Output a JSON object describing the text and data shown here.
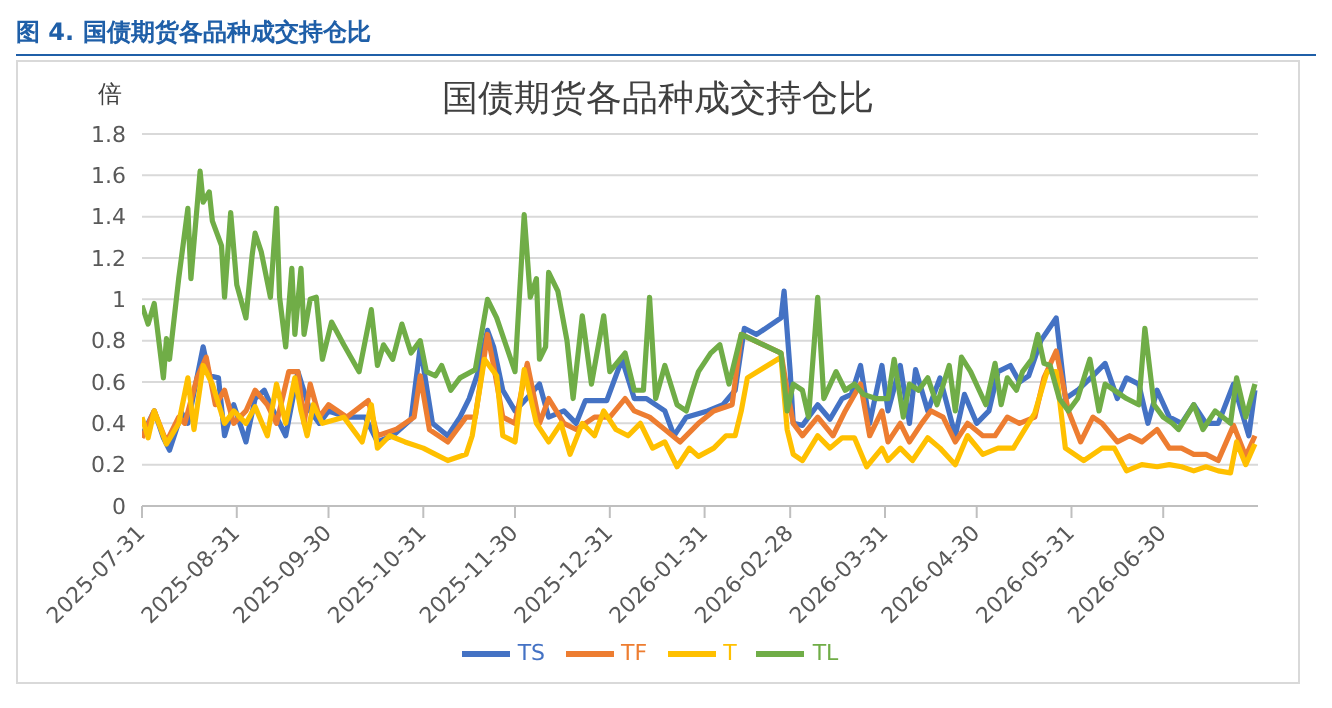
{
  "chart_data": {
    "type": "line",
    "title": "国债期货各品种成交持仓比",
    "ylabel": "倍",
    "annotations": [
      "图 4. 国债期货各品种成交持仓比"
    ],
    "xlim": [
      "2025-07-31",
      "2026-07-31"
    ],
    "xticks": [
      "2025-07-31",
      "2025-08-31",
      "2025-09-30",
      "2025-10-31",
      "2025-11-30",
      "2025-12-31",
      "2026-01-31",
      "2026-02-28",
      "2026-03-31",
      "2026-04-30",
      "2026-05-31",
      "2026-06-30"
    ],
    "ylim": [
      0,
      1.8
    ],
    "yticks": [
      0,
      0.2,
      0.4,
      0.6,
      0.8,
      1,
      1.2,
      1.4,
      1.6,
      1.8
    ],
    "grid": "y",
    "legend": "bottom",
    "line_style": "solid",
    "series": [
      {
        "name": "TS",
        "color": "#4472c4",
        "x": [
          "2025-07-31",
          "2025-08-04",
          "2025-08-07",
          "2025-08-09",
          "2025-08-13",
          "2025-08-15",
          "2025-08-20",
          "2025-08-22",
          "2025-08-25",
          "2025-08-27",
          "2025-08-30",
          "2025-09-03",
          "2025-09-06",
          "2025-09-09",
          "2025-09-12",
          "2025-09-16",
          "2025-09-20",
          "2025-09-24",
          "2025-09-27",
          "2025-09-30",
          "2025-10-06",
          "2025-10-12",
          "2025-10-16",
          "2025-10-21",
          "2025-10-27",
          "2025-10-30",
          "2025-11-03",
          "2025-11-08",
          "2025-11-12",
          "2025-11-15",
          "2025-11-18",
          "2025-11-21",
          "2025-11-23",
          "2025-11-26",
          "2025-11-30",
          "2025-12-05",
          "2025-12-08",
          "2025-12-11",
          "2025-12-16",
          "2025-12-20",
          "2025-12-23",
          "2025-12-27",
          "2025-12-30",
          "2026-01-04",
          "2026-01-08",
          "2026-01-12",
          "2026-01-18",
          "2026-01-21",
          "2026-01-25",
          "2026-02-01",
          "2026-02-06",
          "2026-02-10",
          "2026-02-13",
          "2026-02-17",
          "2026-02-25",
          "2026-02-26",
          "2026-02-28",
          "2026-03-01",
          "2026-03-04",
          "2026-03-09",
          "2026-03-13",
          "2026-03-17",
          "2026-03-20",
          "2026-03-23",
          "2026-03-26",
          "2026-03-30",
          "2026-04-01",
          "2026-04-05",
          "2026-04-08",
          "2026-04-10",
          "2026-04-14",
          "2026-04-18",
          "2026-04-23",
          "2026-04-26",
          "2026-04-30",
          "2026-05-04",
          "2026-05-07",
          "2026-05-11",
          "2026-05-14",
          "2026-05-17",
          "2026-05-21",
          "2026-05-26",
          "2026-05-29",
          "2026-06-02",
          "2026-06-07",
          "2026-06-11",
          "2026-06-15",
          "2026-06-18",
          "2026-06-22",
          "2026-06-25",
          "2026-06-28",
          "2026-07-02",
          "2026-07-06",
          "2026-07-10",
          "2026-07-14",
          "2026-07-18",
          "2026-07-23",
          "2026-07-28",
          "2026-07-30"
        ],
        "values": [
          0.34,
          0.46,
          0.33,
          0.27,
          0.45,
          0.4,
          0.77,
          0.63,
          0.62,
          0.34,
          0.49,
          0.31,
          0.52,
          0.56,
          0.46,
          0.34,
          0.65,
          0.46,
          0.4,
          0.46,
          0.43,
          0.43,
          0.31,
          0.34,
          0.42,
          0.77,
          0.4,
          0.34,
          0.43,
          0.52,
          0.65,
          0.85,
          0.77,
          0.56,
          0.46,
          0.54,
          0.59,
          0.43,
          0.46,
          0.4,
          0.51,
          0.51,
          0.51,
          0.71,
          0.52,
          0.52,
          0.46,
          0.34,
          0.43,
          0.46,
          0.49,
          0.56,
          0.86,
          0.83,
          0.91,
          1.04,
          0.65,
          0.4,
          0.39,
          0.49,
          0.42,
          0.52,
          0.54,
          0.68,
          0.4,
          0.68,
          0.46,
          0.68,
          0.4,
          0.66,
          0.46,
          0.62,
          0.34,
          0.54,
          0.4,
          0.46,
          0.65,
          0.68,
          0.6,
          0.63,
          0.8,
          0.91,
          0.52,
          0.56,
          0.63,
          0.69,
          0.52,
          0.62,
          0.59,
          0.4,
          0.56,
          0.43,
          0.4,
          0.49,
          0.4,
          0.4,
          0.59,
          0.34,
          0.56
        ]
      },
      {
        "name": "TF",
        "color": "#ed7d31",
        "x": [
          "2025-07-31",
          "2025-08-04",
          "2025-08-08",
          "2025-08-12",
          "2025-08-14",
          "2025-08-18",
          "2025-08-21",
          "2025-08-24",
          "2025-08-27",
          "2025-08-30",
          "2025-09-03",
          "2025-09-06",
          "2025-09-10",
          "2025-09-13",
          "2025-09-17",
          "2025-09-20",
          "2025-09-22",
          "2025-09-24",
          "2025-09-27",
          "2025-09-30",
          "2025-10-06",
          "2025-10-13",
          "2025-10-16",
          "2025-10-22",
          "2025-10-28",
          "2025-10-30",
          "2025-11-02",
          "2025-11-08",
          "2025-11-14",
          "2025-11-17",
          "2025-11-21",
          "2025-11-23",
          "2025-11-26",
          "2025-11-30",
          "2025-12-04",
          "2025-12-08",
          "2025-12-11",
          "2025-12-16",
          "2025-12-20",
          "2025-12-26",
          "2025-12-31",
          "2026-01-05",
          "2026-01-08",
          "2026-01-13",
          "2026-01-18",
          "2026-01-23",
          "2026-01-29",
          "2026-02-03",
          "2026-02-09",
          "2026-02-12",
          "2026-02-25",
          "2026-02-27",
          "2026-03-01",
          "2026-03-04",
          "2026-03-09",
          "2026-03-14",
          "2026-03-18",
          "2026-03-23",
          "2026-03-26",
          "2026-03-30",
          "2026-04-01",
          "2026-04-05",
          "2026-04-08",
          "2026-04-12",
          "2026-04-15",
          "2026-04-19",
          "2026-04-23",
          "2026-04-27",
          "2026-05-02",
          "2026-05-06",
          "2026-05-10",
          "2026-05-14",
          "2026-05-19",
          "2026-05-22",
          "2026-05-26",
          "2026-05-30",
          "2026-06-03",
          "2026-06-07",
          "2026-06-10",
          "2026-06-15",
          "2026-06-19",
          "2026-06-23",
          "2026-06-28",
          "2026-07-02",
          "2026-07-06",
          "2026-07-10",
          "2026-07-14",
          "2026-07-18",
          "2026-07-23",
          "2026-07-27",
          "2026-07-30"
        ],
        "values": [
          0.33,
          0.46,
          0.31,
          0.43,
          0.4,
          0.62,
          0.72,
          0.49,
          0.56,
          0.4,
          0.46,
          0.56,
          0.49,
          0.4,
          0.65,
          0.65,
          0.4,
          0.59,
          0.43,
          0.49,
          0.43,
          0.51,
          0.34,
          0.37,
          0.43,
          0.63,
          0.37,
          0.31,
          0.43,
          0.43,
          0.83,
          0.68,
          0.43,
          0.4,
          0.69,
          0.4,
          0.52,
          0.4,
          0.37,
          0.43,
          0.43,
          0.52,
          0.46,
          0.43,
          0.37,
          0.31,
          0.4,
          0.46,
          0.49,
          0.83,
          0.74,
          0.56,
          0.4,
          0.34,
          0.43,
          0.34,
          0.46,
          0.59,
          0.34,
          0.46,
          0.31,
          0.4,
          0.31,
          0.4,
          0.46,
          0.43,
          0.31,
          0.4,
          0.34,
          0.34,
          0.43,
          0.4,
          0.43,
          0.62,
          0.75,
          0.46,
          0.31,
          0.43,
          0.4,
          0.31,
          0.34,
          0.31,
          0.37,
          0.28,
          0.28,
          0.25,
          0.25,
          0.22,
          0.39,
          0.24,
          0.34
        ]
      },
      {
        "name": "T",
        "color": "#ffc000",
        "x": [
          "2025-07-31",
          "2025-08-02",
          "2025-08-04",
          "2025-08-08",
          "2025-08-12",
          "2025-08-15",
          "2025-08-17",
          "2025-08-20",
          "2025-08-23",
          "2025-08-27",
          "2025-08-30",
          "2025-09-03",
          "2025-09-06",
          "2025-09-10",
          "2025-09-13",
          "2025-09-16",
          "2025-09-19",
          "2025-09-21",
          "2025-09-23",
          "2025-09-25",
          "2025-09-28",
          "2025-10-05",
          "2025-10-11",
          "2025-10-14",
          "2025-10-16",
          "2025-10-20",
          "2025-10-25",
          "2025-10-31",
          "2025-11-04",
          "2025-11-08",
          "2025-11-14",
          "2025-11-16",
          "2025-11-20",
          "2025-11-24",
          "2025-11-26",
          "2025-11-30",
          "2025-12-03",
          "2025-12-07",
          "2025-12-11",
          "2025-12-15",
          "2025-12-18",
          "2025-12-22",
          "2025-12-26",
          "2025-12-29",
          "2026-01-02",
          "2026-01-06",
          "2026-01-10",
          "2026-01-14",
          "2026-01-18",
          "2026-01-22",
          "2026-01-26",
          "2026-01-29",
          "2026-02-03",
          "2026-02-07",
          "2026-02-10",
          "2026-02-12",
          "2026-02-14",
          "2026-02-25",
          "2026-02-27",
          "2026-03-01",
          "2026-03-04",
          "2026-03-09",
          "2026-03-13",
          "2026-03-17",
          "2026-03-21",
          "2026-03-25",
          "2026-03-30",
          "2026-04-01",
          "2026-04-05",
          "2026-04-09",
          "2026-04-14",
          "2026-04-18",
          "2026-04-23",
          "2026-04-27",
          "2026-05-02",
          "2026-05-07",
          "2026-05-12",
          "2026-05-19",
          "2026-05-23",
          "2026-05-26",
          "2026-05-29",
          "2026-06-04",
          "2026-06-10",
          "2026-06-14",
          "2026-06-18",
          "2026-06-23",
          "2026-06-28",
          "2026-07-02",
          "2026-07-06",
          "2026-07-10",
          "2026-07-14",
          "2026-07-18",
          "2026-07-22",
          "2026-07-24",
          "2026-07-27",
          "2026-07-30"
        ],
        "values": [
          0.43,
          0.33,
          0.46,
          0.3,
          0.4,
          0.62,
          0.37,
          0.68,
          0.59,
          0.4,
          0.46,
          0.4,
          0.48,
          0.34,
          0.59,
          0.4,
          0.62,
          0.46,
          0.34,
          0.49,
          0.4,
          0.43,
          0.31,
          0.49,
          0.28,
          0.34,
          0.31,
          0.28,
          0.25,
          0.22,
          0.25,
          0.34,
          0.71,
          0.63,
          0.34,
          0.31,
          0.66,
          0.4,
          0.31,
          0.4,
          0.25,
          0.4,
          0.34,
          0.46,
          0.37,
          0.34,
          0.4,
          0.28,
          0.31,
          0.19,
          0.28,
          0.24,
          0.28,
          0.34,
          0.34,
          0.46,
          0.62,
          0.72,
          0.37,
          0.25,
          0.22,
          0.34,
          0.28,
          0.33,
          0.33,
          0.19,
          0.28,
          0.22,
          0.28,
          0.22,
          0.33,
          0.28,
          0.2,
          0.34,
          0.25,
          0.28,
          0.28,
          0.45,
          0.65,
          0.65,
          0.28,
          0.22,
          0.28,
          0.28,
          0.17,
          0.2,
          0.19,
          0.2,
          0.19,
          0.17,
          0.19,
          0.17,
          0.16,
          0.31,
          0.2,
          0.3
        ]
      },
      {
        "name": "TL",
        "color": "#70ad47",
        "x": [
          "2025-07-31",
          "2025-08-02",
          "2025-08-04",
          "2025-08-07",
          "2025-08-08",
          "2025-08-09",
          "2025-08-12",
          "2025-08-15",
          "2025-08-16",
          "2025-08-19",
          "2025-08-20",
          "2025-08-22",
          "2025-08-23",
          "2025-08-26",
          "2025-08-27",
          "2025-08-29",
          "2025-08-31",
          "2025-09-03",
          "2025-09-05",
          "2025-09-06",
          "2025-09-08",
          "2025-09-11",
          "2025-09-13",
          "2025-09-14",
          "2025-09-16",
          "2025-09-18",
          "2025-09-19",
          "2025-09-21",
          "2025-09-22",
          "2025-09-24",
          "2025-09-26",
          "2025-09-28",
          "2025-10-01",
          "2025-10-05",
          "2025-10-10",
          "2025-10-14",
          "2025-10-16",
          "2025-10-18",
          "2025-10-21",
          "2025-10-24",
          "2025-10-27",
          "2025-10-30",
          "2025-11-01",
          "2025-11-04",
          "2025-11-06",
          "2025-11-09",
          "2025-11-12",
          "2025-11-17",
          "2025-11-21",
          "2025-11-24",
          "2025-11-30",
          "2025-12-03",
          "2025-12-05",
          "2025-12-07",
          "2025-12-08",
          "2025-12-10",
          "2025-12-11",
          "2025-12-14",
          "2025-12-17",
          "2025-12-19",
          "2025-12-22",
          "2025-12-25",
          "2025-12-29",
          "2025-12-31",
          "2026-01-05",
          "2026-01-08",
          "2026-01-11",
          "2026-01-13",
          "2026-01-15",
          "2026-01-18",
          "2026-01-22",
          "2026-01-25",
          "2026-01-27",
          "2026-01-29",
          "2026-02-02",
          "2026-02-05",
          "2026-02-08",
          "2026-02-12",
          "2026-02-25",
          "2026-02-27",
          "2026-03-01",
          "2026-03-04",
          "2026-03-06",
          "2026-03-09",
          "2026-03-11",
          "2026-03-15",
          "2026-03-18",
          "2026-03-21",
          "2026-03-24",
          "2026-03-28",
          "2026-04-01",
          "2026-04-03",
          "2026-04-06",
          "2026-04-08",
          "2026-04-11",
          "2026-04-14",
          "2026-04-17",
          "2026-04-21",
          "2026-04-23",
          "2026-04-25",
          "2026-04-28",
          "2026-05-03",
          "2026-05-06",
          "2026-05-08",
          "2026-05-10",
          "2026-05-13",
          "2026-05-15",
          "2026-05-18",
          "2026-05-20",
          "2026-05-22",
          "2026-05-24",
          "2026-05-27",
          "2026-05-30",
          "2026-06-02",
          "2026-06-06",
          "2026-06-09",
          "2026-06-11",
          "2026-06-14",
          "2026-06-18",
          "2026-06-22",
          "2026-06-24",
          "2026-06-27",
          "2026-06-30",
          "2026-07-03",
          "2026-07-05",
          "2026-07-10",
          "2026-07-13",
          "2026-07-17",
          "2026-07-22",
          "2026-07-24",
          "2026-07-27",
          "2026-07-30"
        ],
        "values": [
          0.97,
          0.88,
          0.98,
          0.62,
          0.81,
          0.71,
          1.1,
          1.44,
          1.1,
          1.62,
          1.47,
          1.52,
          1.38,
          1.26,
          1.01,
          1.42,
          1.07,
          0.91,
          1.21,
          1.32,
          1.23,
          1.01,
          1.44,
          1.01,
          0.77,
          1.15,
          0.83,
          1.15,
          0.83,
          1,
          1.01,
          0.71,
          0.89,
          0.78,
          0.65,
          0.95,
          0.68,
          0.78,
          0.71,
          0.88,
          0.74,
          0.8,
          0.65,
          0.63,
          0.68,
          0.56,
          0.62,
          0.66,
          1,
          0.91,
          0.65,
          1.41,
          1.01,
          1.1,
          0.71,
          0.77,
          1.13,
          1.04,
          0.8,
          0.52,
          0.92,
          0.59,
          0.92,
          0.65,
          0.74,
          0.56,
          0.56,
          1.01,
          0.52,
          0.68,
          0.49,
          0.46,
          0.56,
          0.65,
          0.74,
          0.78,
          0.59,
          0.83,
          0.74,
          0.46,
          0.59,
          0.56,
          0.43,
          1.01,
          0.52,
          0.65,
          0.56,
          0.59,
          0.54,
          0.52,
          0.52,
          0.71,
          0.43,
          0.59,
          0.56,
          0.62,
          0.49,
          0.68,
          0.46,
          0.72,
          0.65,
          0.49,
          0.69,
          0.49,
          0.62,
          0.56,
          0.65,
          0.71,
          0.83,
          0.69,
          0.68,
          0.52,
          0.46,
          0.52,
          0.71,
          0.46,
          0.59,
          0.56,
          0.52,
          0.49,
          0.86,
          0.49,
          0.43,
          0.4,
          0.37,
          0.49,
          0.37,
          0.46,
          0.4,
          0.62,
          0.43,
          0.59
        ]
      }
    ]
  }
}
